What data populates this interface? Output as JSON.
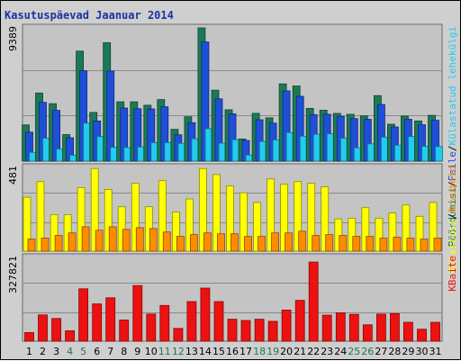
{
  "chart_data": {
    "type": "bar",
    "title": "Kasutuspäevad Jaanuar 2014",
    "categories": [
      "1",
      "2",
      "3",
      "4",
      "5",
      "6",
      "7",
      "8",
      "9",
      "10",
      "11",
      "12",
      "13",
      "14",
      "15",
      "16",
      "17",
      "18",
      "19",
      "20",
      "21",
      "22",
      "23",
      "24",
      "25",
      "26",
      "27",
      "28",
      "29",
      "30",
      "31"
    ],
    "weekend_days": [
      "4",
      "5",
      "11",
      "12",
      "18",
      "19",
      "25",
      "26"
    ],
    "panels": [
      {
        "id": "visits",
        "ylabel_max": "9389",
        "ylim": [
          0,
          9389
        ],
        "series": [
          {
            "name": "Pöördumisi",
            "color": "#1b7a55",
            "values": [
              2550,
              4800,
              4050,
              1870,
              7750,
              3430,
              8350,
              4180,
              4180,
              3940,
              4340,
              2240,
              3130,
              9389,
              5000,
              3620,
              1560,
              3370,
              3050,
              5440,
              5300,
              3720,
              3590,
              3360,
              3300,
              3190,
              4620,
              2600,
              3170,
              2830,
              3230
            ]
          },
          {
            "name": "Faile",
            "color": "#1f4fd8",
            "values": [
              2040,
              4140,
              3580,
              1650,
              6370,
              2830,
              6350,
              3740,
              3700,
              3680,
              3830,
              1850,
              2710,
              8400,
              4390,
              3340,
              1460,
              2920,
              2680,
              4950,
              4570,
              3280,
              3310,
              3160,
              3000,
              2950,
              3990,
              2410,
              2950,
              2560,
              2880
            ]
          },
          {
            "name": "Külastatud lehekülgi",
            "color": "#22ccee",
            "values": [
              620,
              1620,
              860,
              420,
              2680,
              1730,
              970,
              960,
              1000,
              1310,
              1310,
              1250,
              1580,
              2290,
              1270,
              1510,
              430,
              1390,
              1500,
              2010,
              1760,
              1900,
              1930,
              1620,
              940,
              1220,
              1690,
              1120,
              1740,
              1050,
              1030
            ]
          }
        ]
      },
      {
        "id": "visitors",
        "ylabel_max": "481",
        "ylim": [
          0,
          481
        ],
        "series": [
          {
            "name": "Külastusi",
            "color": "#ffff00",
            "values": [
              310,
              400,
              210,
              210,
              365,
              475,
              355,
              255,
              390,
              255,
              405,
              225,
              300,
              475,
              440,
              375,
              335,
              280,
              415,
              385,
              400,
              390,
              370,
              185,
              190,
              250,
              190,
              220,
              265,
              200,
              280
            ]
          },
          {
            "name": "Arvuteid",
            "color": "#ff8c00",
            "values": [
              70,
              75,
              90,
              105,
              140,
              120,
              140,
              125,
              135,
              130,
              110,
              85,
              95,
              105,
              100,
              100,
              85,
              85,
              105,
              105,
              115,
              90,
              95,
              90,
              85,
              85,
              75,
              80,
              75,
              70,
              75
            ]
          }
        ]
      },
      {
        "id": "bytes",
        "ylabel_max": "327821",
        "ylim": [
          0,
          327821
        ],
        "series": [
          {
            "name": "KBaite",
            "color": "#ee1111",
            "values": [
              34000,
              103000,
              89000,
              41000,
              205000,
              146000,
              170000,
              83000,
              218000,
              106000,
              140000,
              50000,
              155000,
              208000,
              155000,
              86000,
              81000,
              86000,
              78000,
              122000,
              160000,
              310000,
              102000,
              111000,
              105000,
              64000,
              106000,
              108000,
              74000,
              47000,
              74000
            ]
          }
        ]
      }
    ],
    "right_labels": {
      "top": [
        "Pöördumisi",
        "/",
        "Faile",
        "/",
        "Külastatud lehekülgi"
      ],
      "middle": [
        "Külastusi",
        "/",
        "Arvuteid"
      ],
      "bottom": [
        "KBaite"
      ]
    },
    "colors": {
      "background": "#cfcfcf",
      "plot_background": "#c4c4c4",
      "grid": "#8a8a8a",
      "title": "#1c32a0",
      "weekday_tick": "#000000",
      "weekend_tick": "#1f7a50"
    }
  }
}
